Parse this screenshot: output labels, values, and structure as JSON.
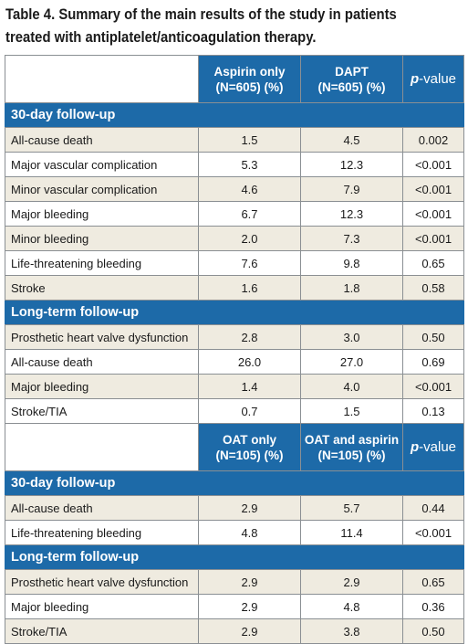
{
  "caption": {
    "line1": "Table 4. Summary of the main results of the study in patients",
    "line2": "treated with antiplatelet/anticoagulation therapy."
  },
  "table": {
    "header1": {
      "col1_line1": "Aspirin only",
      "col1_line2": "(N=605) (%)",
      "col2_line1": "DAPT",
      "col2_line2": "(N=605) (%)",
      "pvalue_italic": "p",
      "pvalue_rest": "-value"
    },
    "block1": {
      "section_30day": "30-day follow-up",
      "rows_30day": [
        {
          "label": "All-cause death",
          "a": "1.5",
          "b": "4.5",
          "p": "0.002"
        },
        {
          "label": "Major vascular complication",
          "a": "5.3",
          "b": "12.3",
          "p": "<0.001"
        },
        {
          "label": "Minor vascular complication",
          "a": "4.6",
          "b": "7.9",
          "p": "<0.001"
        },
        {
          "label": "Major bleeding",
          "a": "6.7",
          "b": "12.3",
          "p": "<0.001"
        },
        {
          "label": "Minor bleeding",
          "a": "2.0",
          "b": "7.3",
          "p": "<0.001"
        },
        {
          "label": "Life-threatening bleeding",
          "a": "7.6",
          "b": "9.8",
          "p": "0.65"
        },
        {
          "label": "Stroke",
          "a": "1.6",
          "b": "1.8",
          "p": "0.58"
        }
      ],
      "section_long": "Long-term follow-up",
      "rows_long": [
        {
          "label": "Prosthetic heart valve dysfunction",
          "a": "2.8",
          "b": "3.0",
          "p": "0.50"
        },
        {
          "label": "All-cause death",
          "a": "26.0",
          "b": "27.0",
          "p": "0.69"
        },
        {
          "label": "Major bleeding",
          "a": "1.4",
          "b": "4.0",
          "p": "<0.001"
        },
        {
          "label": "Stroke/TIA",
          "a": "0.7",
          "b": "1.5",
          "p": "0.13"
        }
      ]
    },
    "header2": {
      "col1_line1": "OAT only",
      "col1_line2": "(N=105) (%)",
      "col2_line1": "OAT and aspirin",
      "col2_line2": "(N=105) (%)",
      "pvalue_italic": "p",
      "pvalue_rest": "-value"
    },
    "block2": {
      "section_30day": "30-day follow-up",
      "rows_30day": [
        {
          "label": "All-cause death",
          "a": "2.9",
          "b": "5.7",
          "p": "0.44"
        },
        {
          "label": "Life-threatening bleeding",
          "a": "4.8",
          "b": "11.4",
          "p": "<0.001"
        }
      ],
      "section_long": "Long-term follow-up",
      "rows_long": [
        {
          "label": "Prosthetic heart valve dysfunction",
          "a": "2.9",
          "b": "2.9",
          "p": "0.65"
        },
        {
          "label": "Major bleeding",
          "a": "2.9",
          "b": "4.8",
          "p": "0.36"
        },
        {
          "label": "Stroke/TIA",
          "a": "2.9",
          "b": "3.8",
          "p": "0.50"
        }
      ]
    },
    "colors": {
      "header_blue": "#1d6aa8",
      "row_tan": "#efebe0",
      "row_white": "#ffffff"
    }
  }
}
